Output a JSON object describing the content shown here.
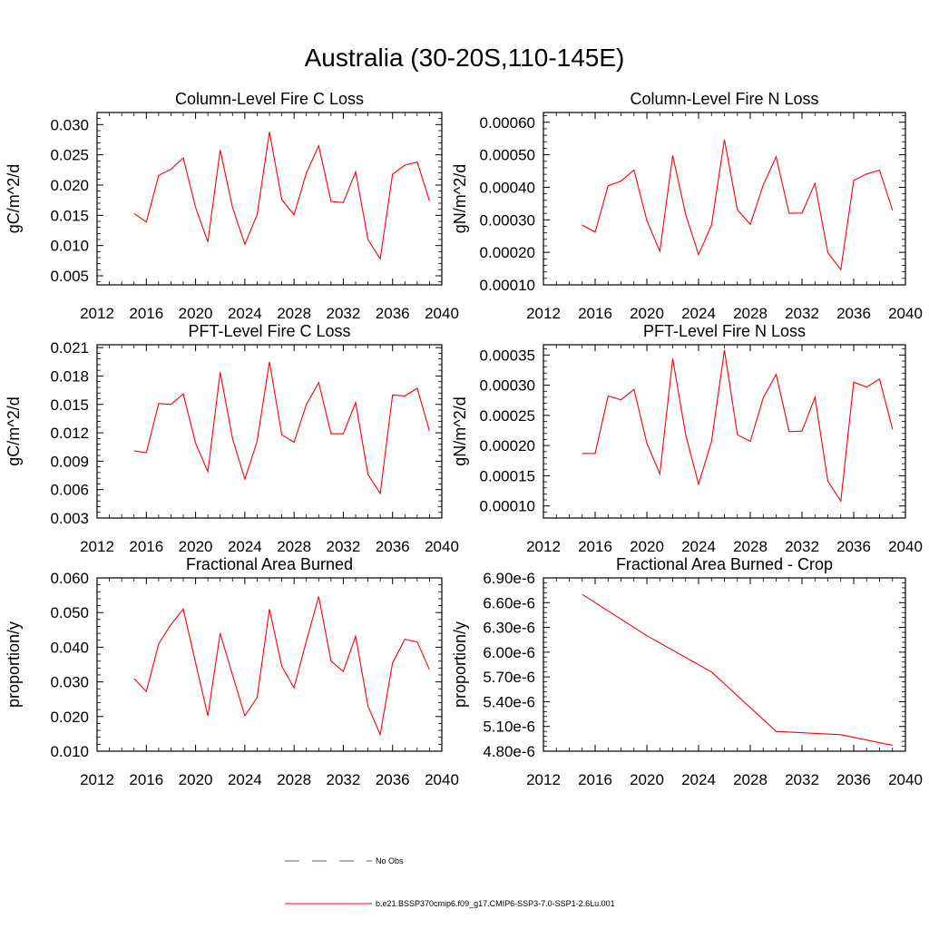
{
  "title": "Australia (30-20S,110-145E)",
  "colors": {
    "model": "#ff0000",
    "obs": "#5a5aa0",
    "axes": "#000000"
  },
  "legend": [
    {
      "label": "No Obs",
      "style": "dashed",
      "color": "#5a5aa0"
    },
    {
      "label": "b.e21.BSSP370cmip6.f09_g17.CMIP6-SSP3-7.0-SSP1-2.6Lu.001",
      "style": "solid",
      "color": "#ff0000"
    }
  ],
  "chart_data": [
    {
      "type": "line",
      "title": "Column-Level Fire C Loss",
      "ylabel": "gC/m^2/d",
      "xlim": [
        2012,
        2040
      ],
      "xticks": [
        2012,
        2016,
        2020,
        2024,
        2028,
        2032,
        2036,
        2040
      ],
      "ylim": [
        0.0035,
        0.032
      ],
      "yticks": [
        0.005,
        0.01,
        0.015,
        0.02,
        0.025,
        0.03
      ],
      "yticklabels": [
        "0.005",
        "0.010",
        "0.015",
        "0.020",
        "0.025",
        "0.030"
      ],
      "series": [
        {
          "name": "b.e21.BSSP370cmip6.f09_g17.CMIP6-SSP3-7.0-SSP1-2.6Lu.001",
          "x": [
            2015,
            2016,
            2017,
            2018,
            2019,
            2020,
            2021,
            2022,
            2023,
            2024,
            2025,
            2026,
            2027,
            2028,
            2029,
            2030,
            2031,
            2032,
            2033,
            2034,
            2035,
            2036,
            2037,
            2038,
            2039
          ],
          "y": [
            0.0153,
            0.0139,
            0.0216,
            0.0226,
            0.0245,
            0.0163,
            0.0106,
            0.0258,
            0.0163,
            0.0102,
            0.0151,
            0.0288,
            0.0176,
            0.0151,
            0.022,
            0.0265,
            0.0173,
            0.0171,
            0.0222,
            0.011,
            0.0078,
            0.0218,
            0.0233,
            0.0238,
            0.0174
          ]
        }
      ]
    },
    {
      "type": "line",
      "title": "Column-Level Fire N Loss",
      "ylabel": "gN/m^2/d",
      "xlim": [
        2012,
        2040
      ],
      "xticks": [
        2012,
        2016,
        2020,
        2024,
        2028,
        2032,
        2036,
        2040
      ],
      "ylim": [
        0.0001,
        0.00063
      ],
      "yticks": [
        0.0001,
        0.0002,
        0.0003,
        0.0004,
        0.0005,
        0.0006
      ],
      "yticklabels": [
        "0.00010",
        "0.00020",
        "0.00030",
        "0.00040",
        "0.00050",
        "0.00060"
      ],
      "series": [
        {
          "name": "b.e21.BSSP370cmip6.f09_g17.CMIP6-SSP3-7.0-SSP1-2.6Lu.001",
          "x": [
            2015,
            2016,
            2017,
            2018,
            2019,
            2020,
            2021,
            2022,
            2023,
            2024,
            2025,
            2026,
            2027,
            2028,
            2029,
            2030,
            2031,
            2032,
            2033,
            2034,
            2035,
            2036,
            2037,
            2038,
            2039
          ],
          "y": [
            0.000284,
            0.000262,
            0.000405,
            0.000419,
            0.000453,
            0.000298,
            0.000203,
            0.000498,
            0.000316,
            0.000193,
            0.000284,
            0.000547,
            0.000331,
            0.000286,
            0.000407,
            0.000494,
            0.00032,
            0.000321,
            0.000412,
            0.000199,
            0.000147,
            0.000421,
            0.000441,
            0.000453,
            0.000329
          ]
        }
      ]
    },
    {
      "type": "line",
      "title": "PFT-Level Fire C Loss",
      "ylabel": "gC/m^2/d",
      "xlim": [
        2012,
        2040
      ],
      "xticks": [
        2012,
        2016,
        2020,
        2024,
        2028,
        2032,
        2036,
        2040
      ],
      "ylim": [
        0.003,
        0.0213
      ],
      "yticks": [
        0.003,
        0.006,
        0.009,
        0.012,
        0.015,
        0.018,
        0.021
      ],
      "yticklabels": [
        "0.003",
        "0.006",
        "0.009",
        "0.012",
        "0.015",
        "0.018",
        "0.021"
      ],
      "series": [
        {
          "name": "b.e21.BSSP370cmip6.f09_g17.CMIP6-SSP3-7.0-SSP1-2.6Lu.001",
          "x": [
            2015,
            2016,
            2017,
            2018,
            2019,
            2020,
            2021,
            2022,
            2023,
            2024,
            2025,
            2026,
            2027,
            2028,
            2029,
            2030,
            2031,
            2032,
            2033,
            2034,
            2035,
            2036,
            2037,
            2038,
            2039
          ],
          "y": [
            0.0101,
            0.0099,
            0.0151,
            0.015,
            0.0161,
            0.0109,
            0.0079,
            0.0184,
            0.0114,
            0.0071,
            0.0111,
            0.0195,
            0.0118,
            0.011,
            0.015,
            0.0173,
            0.0119,
            0.0119,
            0.0152,
            0.0076,
            0.0056,
            0.016,
            0.0159,
            0.0167,
            0.0122
          ]
        }
      ]
    },
    {
      "type": "line",
      "title": "PFT-Level Fire N Loss",
      "ylabel": "gN/m^2/d",
      "xlim": [
        2012,
        2040
      ],
      "xticks": [
        2012,
        2016,
        2020,
        2024,
        2028,
        2032,
        2036,
        2040
      ],
      "ylim": [
        8e-05,
        0.000367
      ],
      "yticks": [
        0.0001,
        0.00015,
        0.0002,
        0.00025,
        0.0003,
        0.00035
      ],
      "yticklabels": [
        "0.00010",
        "0.00015",
        "0.00020",
        "0.00025",
        "0.00030",
        "0.00035"
      ],
      "series": [
        {
          "name": "b.e21.BSSP370cmip6.f09_g17.CMIP6-SSP3-7.0-SSP1-2.6Lu.001",
          "x": [
            2015,
            2016,
            2017,
            2018,
            2019,
            2020,
            2021,
            2022,
            2023,
            2024,
            2025,
            2026,
            2027,
            2028,
            2029,
            2030,
            2031,
            2032,
            2033,
            2034,
            2035,
            2036,
            2037,
            2038,
            2039
          ],
          "y": [
            0.000187,
            0.000187,
            0.000282,
            0.000276,
            0.000293,
            0.000204,
            0.000153,
            0.000344,
            0.000218,
            0.000136,
            0.000207,
            0.000358,
            0.000218,
            0.000207,
            0.000279,
            0.000318,
            0.000223,
            0.000224,
            0.00028,
            0.000141,
            0.000108,
            0.000305,
            0.000297,
            0.00031,
            0.000227
          ]
        }
      ]
    },
    {
      "type": "line",
      "title": "Fractional Area Burned",
      "ylabel": "proportion/y",
      "xlim": [
        2012,
        2040
      ],
      "xticks": [
        2012,
        2016,
        2020,
        2024,
        2028,
        2032,
        2036,
        2040
      ],
      "ylim": [
        0.01,
        0.06
      ],
      "yticks": [
        0.01,
        0.02,
        0.03,
        0.04,
        0.05,
        0.06
      ],
      "yticklabels": [
        "0.010",
        "0.020",
        "0.030",
        "0.040",
        "0.050",
        "0.060"
      ],
      "series": [
        {
          "name": "b.e21.BSSP370cmip6.f09_g17.CMIP6-SSP3-7.0-SSP1-2.6Lu.001",
          "x": [
            2015,
            2016,
            2017,
            2018,
            2019,
            2020,
            2021,
            2022,
            2023,
            2024,
            2025,
            2026,
            2027,
            2028,
            2029,
            2030,
            2031,
            2032,
            2033,
            2034,
            2035,
            2036,
            2037,
            2038,
            2039
          ],
          "y": [
            0.031,
            0.0272,
            0.041,
            0.0465,
            0.051,
            0.0355,
            0.0202,
            0.044,
            0.032,
            0.0202,
            0.0255,
            0.051,
            0.0345,
            0.0283,
            0.0418,
            0.0546,
            0.036,
            0.033,
            0.0432,
            0.023,
            0.0148,
            0.0355,
            0.0423,
            0.0415,
            0.0335
          ]
        }
      ]
    },
    {
      "type": "line",
      "title": "Fractional Area Burned - Crop",
      "ylabel": "proportion/y",
      "xlim": [
        2012,
        2040
      ],
      "xticks": [
        2012,
        2016,
        2020,
        2024,
        2028,
        2032,
        2036,
        2040
      ],
      "ylim": [
        4.8e-06,
        6.9e-06
      ],
      "yticks": [
        4.8e-06,
        5.1e-06,
        5.4e-06,
        5.7e-06,
        6e-06,
        6.3e-06,
        6.6e-06,
        6.9e-06
      ],
      "yticklabels": [
        "4.80e-6",
        "5.10e-6",
        "5.40e-6",
        "5.70e-6",
        "6.00e-6",
        "6.30e-6",
        "6.60e-6",
        "6.90e-6"
      ],
      "series": [
        {
          "name": "b.e21.BSSP370cmip6.f09_g17.CMIP6-SSP3-7.0-SSP1-2.6Lu.001",
          "x": [
            2015,
            2020,
            2025,
            2030,
            2035,
            2039
          ],
          "y": [
            6.7e-06,
            6.2e-06,
            5.76e-06,
            5.04e-06,
            5e-06,
            4.87e-06
          ]
        }
      ]
    }
  ]
}
